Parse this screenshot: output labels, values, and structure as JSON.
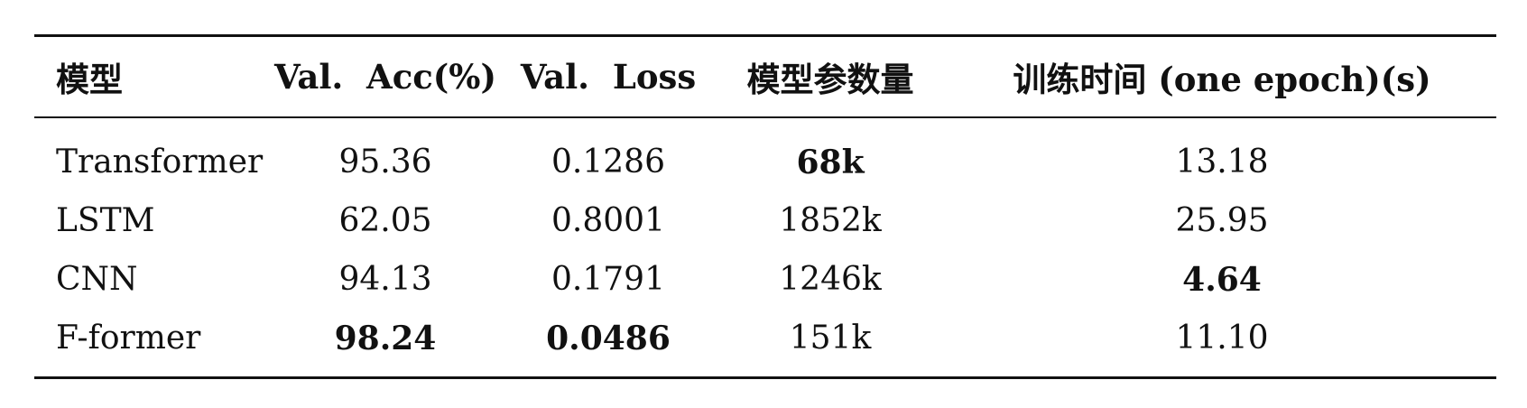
{
  "table": {
    "headers": [
      "模型",
      "Val.  Acc(%)",
      "Val.  Loss",
      "模型参数量",
      "训练时间 (one epoch)(s)"
    ],
    "rows": [
      {
        "model": "Transformer",
        "acc": "95.36",
        "loss": "0.1286",
        "params": "68k",
        "time": "13.18"
      },
      {
        "model": "LSTM",
        "acc": "62.05",
        "loss": "0.8001",
        "params": "1852k",
        "time": "25.95"
      },
      {
        "model": "CNN",
        "acc": "94.13",
        "loss": "0.1791",
        "params": "1246k",
        "time": "4.64"
      },
      {
        "model": "F-former",
        "acc": "98.24",
        "loss": "0.0486",
        "params": "151k",
        "time": "11.10"
      }
    ],
    "bold_cells": [
      "Transformer.params",
      "CNN.time",
      "F-former.acc",
      "F-former.loss"
    ]
  }
}
